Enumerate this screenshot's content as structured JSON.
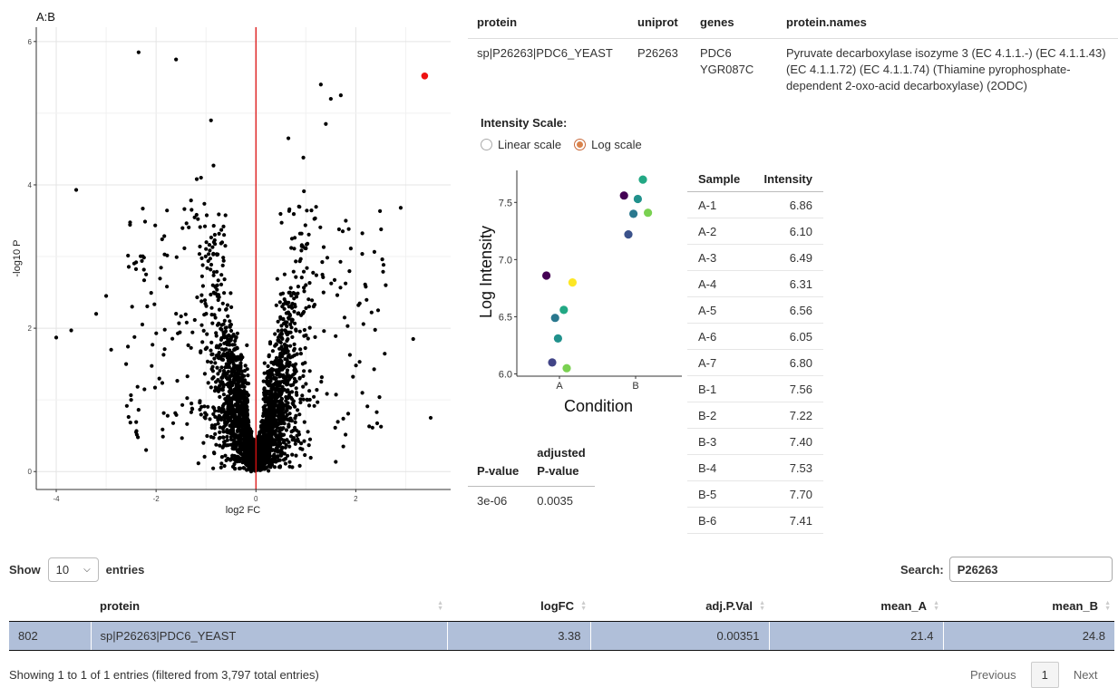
{
  "volcano": {
    "title": "A:B",
    "xlabel": "log2 FC",
    "ylabel": "-log10 P",
    "x_ticks": [
      "-4",
      "-2",
      "0",
      "2"
    ],
    "y_ticks": [
      "0",
      "2",
      "4",
      "6"
    ],
    "xlim": [
      -4.4,
      3.9
    ],
    "ylim": [
      -0.25,
      6.2
    ],
    "highlight_color": "#ee1111",
    "vline_color": "#dd1111"
  },
  "chart_data": [
    {
      "type": "scatter",
      "title": "A:B",
      "xlabel": "log2 FC",
      "ylabel": "-log10 P",
      "xlim": [
        -4.4,
        3.9
      ],
      "ylim": [
        -0.25,
        6.2
      ],
      "grid": true,
      "highlight": {
        "x": 3.38,
        "y": 5.52
      },
      "vline": 0,
      "notable_points": [
        {
          "x": -2.35,
          "y": 5.85
        },
        {
          "x": -1.6,
          "y": 5.75
        },
        {
          "x": -0.9,
          "y": 4.9
        },
        {
          "x": -0.85,
          "y": 4.27
        },
        {
          "x": -1.1,
          "y": 4.1
        },
        {
          "x": -3.6,
          "y": 3.93
        },
        {
          "x": -4.0,
          "y": 1.87
        },
        {
          "x": -3.7,
          "y": 1.97
        },
        {
          "x": -3.2,
          "y": 2.2
        },
        {
          "x": -3.0,
          "y": 2.45
        },
        {
          "x": -2.4,
          "y": 2.92
        },
        {
          "x": -2.2,
          "y": 2.75
        },
        {
          "x": -2.9,
          "y": 1.7
        },
        {
          "x": -2.6,
          "y": 1.5
        },
        {
          "x": -2.5,
          "y": 1.0
        },
        {
          "x": -2.2,
          "y": 0.3
        },
        {
          "x": -2.4,
          "y": 0.55
        },
        {
          "x": 1.3,
          "y": 5.4
        },
        {
          "x": 1.5,
          "y": 5.2
        },
        {
          "x": 1.7,
          "y": 5.25
        },
        {
          "x": 1.4,
          "y": 4.85
        },
        {
          "x": 0.65,
          "y": 4.65
        },
        {
          "x": 0.95,
          "y": 4.38
        },
        {
          "x": 2.9,
          "y": 3.68
        },
        {
          "x": 3.15,
          "y": 1.85
        },
        {
          "x": 3.5,
          "y": 0.75
        },
        {
          "x": 2.6,
          "y": 2.6
        },
        {
          "x": 2.2,
          "y": 2.58
        },
        {
          "x": 1.8,
          "y": 3.5
        },
        {
          "x": 1.75,
          "y": 0.35
        }
      ]
    },
    {
      "type": "scatter",
      "xlabel": "Condition",
      "ylabel": "Log Intensity",
      "categories": [
        "A",
        "B"
      ],
      "ylim": [
        5.98,
        7.78
      ],
      "y_ticks": [
        "6.0",
        "6.5",
        "7.0",
        "7.5"
      ],
      "points": [
        {
          "sample": "A-1",
          "condition": "A",
          "jitter": -0.18,
          "value": 6.86,
          "color": "#440154"
        },
        {
          "sample": "A-2",
          "condition": "A",
          "jitter": -0.1,
          "value": 6.1,
          "color": "#414487"
        },
        {
          "sample": "A-3",
          "condition": "A",
          "jitter": -0.06,
          "value": 6.49,
          "color": "#2a788e"
        },
        {
          "sample": "A-4",
          "condition": "A",
          "jitter": -0.02,
          "value": 6.31,
          "color": "#21918c"
        },
        {
          "sample": "A-5",
          "condition": "A",
          "jitter": 0.06,
          "value": 6.56,
          "color": "#22a884"
        },
        {
          "sample": "A-6",
          "condition": "A",
          "jitter": 0.1,
          "value": 6.05,
          "color": "#7ad151"
        },
        {
          "sample": "A-7",
          "condition": "A",
          "jitter": 0.18,
          "value": 6.8,
          "color": "#fde725"
        },
        {
          "sample": "B-1",
          "condition": "B",
          "jitter": -0.16,
          "value": 7.56,
          "color": "#440154"
        },
        {
          "sample": "B-2",
          "condition": "B",
          "jitter": -0.1,
          "value": 7.22,
          "color": "#3b528b"
        },
        {
          "sample": "B-3",
          "condition": "B",
          "jitter": -0.03,
          "value": 7.4,
          "color": "#2a788e"
        },
        {
          "sample": "B-4",
          "condition": "B",
          "jitter": 0.03,
          "value": 7.53,
          "color": "#21918c"
        },
        {
          "sample": "B-5",
          "condition": "B",
          "jitter": 0.1,
          "value": 7.7,
          "color": "#22a884"
        },
        {
          "sample": "B-6",
          "condition": "B",
          "jitter": 0.17,
          "value": 7.41,
          "color": "#7ad151"
        }
      ]
    }
  ],
  "protein_info": {
    "headers": [
      "protein",
      "uniprot",
      "genes",
      "protein.names"
    ],
    "protein": "sp|P26263|PDC6_YEAST",
    "uniprot": "P26263",
    "genes": [
      "PDC6",
      "YGR087C"
    ],
    "protein_names": "Pyruvate decarboxylase isozyme 3 (EC 4.1.1.-) (EC 4.1.1.43) (EC 4.1.1.72) (EC 4.1.1.74) (Thiamine pyrophosphate-dependent 2-oxo-acid decarboxylase) (2ODC)"
  },
  "intensity_scale": {
    "title": "Intensity Scale:",
    "options": [
      "Linear scale",
      "Log scale"
    ],
    "selected": "Log scale"
  },
  "sample_table": {
    "headers": [
      "Sample",
      "Intensity"
    ],
    "rows": [
      [
        "A-1",
        "6.86"
      ],
      [
        "A-2",
        "6.10"
      ],
      [
        "A-3",
        "6.49"
      ],
      [
        "A-4",
        "6.31"
      ],
      [
        "A-5",
        "6.56"
      ],
      [
        "A-6",
        "6.05"
      ],
      [
        "A-7",
        "6.80"
      ],
      [
        "B-1",
        "7.56"
      ],
      [
        "B-2",
        "7.22"
      ],
      [
        "B-3",
        "7.40"
      ],
      [
        "B-4",
        "7.53"
      ],
      [
        "B-5",
        "7.70"
      ],
      [
        "B-6",
        "7.41"
      ]
    ]
  },
  "pvalue_table": {
    "headers": [
      "P-value",
      "adjusted P-value"
    ],
    "header_adj_line1": "adjusted",
    "header_adj_line2": "P-value",
    "pvalue": "3e-06",
    "adj_pvalue": "0.0035"
  },
  "datatable": {
    "show_label": "Show",
    "entries_label": "entries",
    "page_length": "10",
    "search_label": "Search:",
    "search_value": "P26263",
    "headers": [
      "",
      "protein",
      "logFC",
      "adj.P.Val",
      "mean_A",
      "mean_B"
    ],
    "rows": [
      [
        "802",
        "sp|P26263|PDC6_YEAST",
        "3.38",
        "0.00351",
        "21.4",
        "24.8"
      ]
    ],
    "info": "Showing 1 to 1 of 1 entries (filtered from 3,797 total entries)",
    "prev": "Previous",
    "page": "1",
    "next": "Next"
  }
}
